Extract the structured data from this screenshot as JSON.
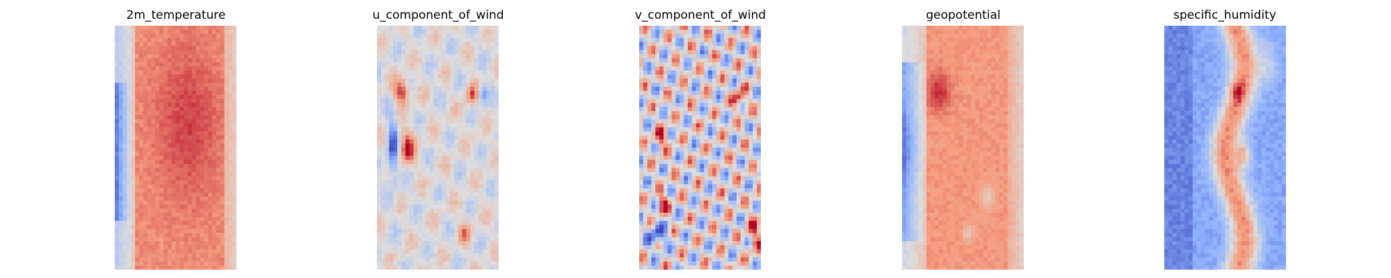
{
  "figure": {
    "background": "#ffffff",
    "colormap": "coolwarm"
  },
  "chart_data": [
    {
      "type": "heatmap",
      "title": "2m_temperature",
      "colormap": "coolwarm",
      "grid": false,
      "axes_visible": false,
      "pattern": "Mostly warm (red) interior with stronger warm core near center; cold blue strip on left edge from upper-middle to lower-middle; lighter near borders."
    },
    {
      "type": "heatmap",
      "title": "u_component_of_wind",
      "colormap": "coolwarm",
      "grid": false,
      "axes_visible": false,
      "pattern": "Near-neutral field with scattered small red and blue blobs; notable dark red spots upper-left and mid-left, blue streak on left-middle, red/blue pairs on right side."
    },
    {
      "type": "heatmap",
      "title": "v_component_of_wind",
      "colormap": "coolwarm",
      "grid": false,
      "axes_visible": false,
      "pattern": "Highly variable alternating red and blue small-scale blobs throughout; dark red spots upper-right and lower-middle; blue patches bottom-left."
    },
    {
      "type": "heatmap",
      "title": "geopotential",
      "colormap": "coolwarm",
      "grid": false,
      "axes_visible": false,
      "pattern": "Warm (red) interior with dark red patch upper-left; blue band along left side, darkest in middle-left; lighter near edges with pale spots in interior."
    },
    {
      "type": "heatmap",
      "title": "specific_humidity",
      "colormap": "coolwarm",
      "grid": false,
      "axes_visible": false,
      "pattern": "Mostly cold (blue) field with a central pale/red meandering band; strongest red near center-middle and upper-middle; deeper blue on left side."
    }
  ]
}
